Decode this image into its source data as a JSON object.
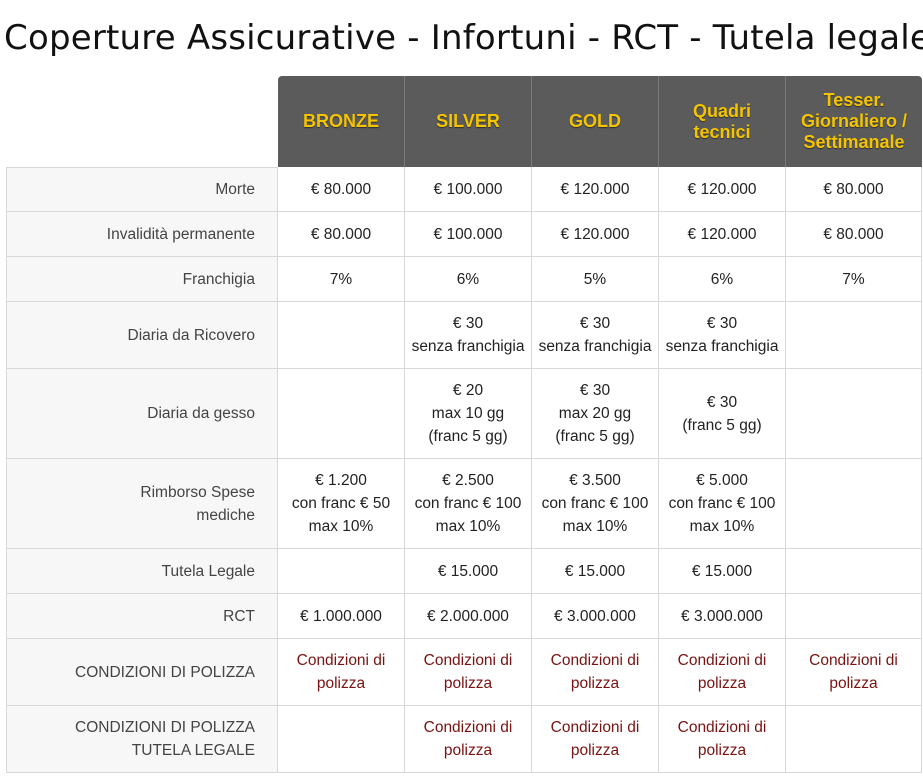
{
  "page": {
    "title": "Coperture Assicurative - Infortuni - RCT - Tutela legale"
  },
  "columns": [
    "BRONZE",
    "SILVER",
    "GOLD",
    "Quadri\ntecnici",
    "Tesser.\nGiornaliero /\nSettimanale"
  ],
  "rows": [
    {
      "label": "Morte",
      "values": [
        "€ 80.000",
        "€ 100.000",
        "€ 120.000",
        "€ 120.000",
        "€ 80.000"
      ]
    },
    {
      "label": "Invalidità permanente",
      "values": [
        "€ 80.000",
        "€ 100.000",
        "€ 120.000",
        "€ 120.000",
        "€ 80.000"
      ]
    },
    {
      "label": "Franchigia",
      "values": [
        "7%",
        "6%",
        "5%",
        "6%",
        "7%"
      ]
    },
    {
      "label": "Diaria da Ricovero",
      "values": [
        "",
        "€ 30\nsenza franchigia",
        "€ 30\nsenza franchigia",
        "€ 30\nsenza franchigia",
        ""
      ]
    },
    {
      "label": "Diaria da gesso",
      "values": [
        "",
        "€ 20\nmax 10 gg\n(franc 5 gg)",
        "€ 30\nmax 20 gg\n(franc 5 gg)",
        "€ 30\n(franc 5 gg)",
        ""
      ]
    },
    {
      "label": "Rimborso Spese\nmediche",
      "values": [
        "€ 1.200\ncon franc € 50\nmax 10%",
        "€ 2.500\ncon franc € 100\nmax 10%",
        "€ 3.500\ncon franc € 100\nmax 10%",
        "€ 5.000\ncon franc € 100\nmax 10%",
        ""
      ]
    },
    {
      "label": "Tutela Legale",
      "values": [
        "",
        "€ 15.000",
        "€ 15.000",
        "€ 15.000",
        ""
      ]
    },
    {
      "label": "RCT",
      "values": [
        "€ 1.000.000",
        "€ 2.000.000",
        "€ 3.000.000",
        "€ 3.000.000",
        ""
      ]
    },
    {
      "label": "CONDIZIONI DI POLIZZA",
      "values": [
        "Condizioni di\npolizza",
        "Condizioni di\npolizza",
        "Condizioni di\npolizza",
        "Condizioni di\npolizza",
        "Condizioni di\npolizza"
      ],
      "links": true
    },
    {
      "label": "CONDIZIONI DI POLIZZA\nTUTELA LEGALE",
      "values": [
        "",
        "Condizioni di\npolizza",
        "Condizioni di\npolizza",
        "Condizioni di\npolizza",
        ""
      ],
      "links": true
    }
  ],
  "colors": {
    "header_bg": "#5b5b5b",
    "header_text": "#f4c400",
    "link": "#7a1212",
    "label_bg": "#f7f7f7"
  }
}
